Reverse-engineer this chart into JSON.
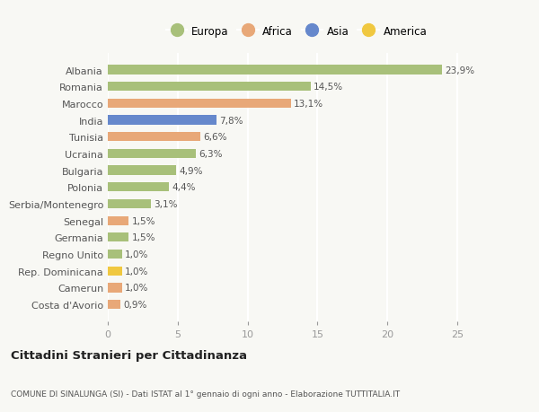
{
  "countries": [
    "Albania",
    "Romania",
    "Marocco",
    "India",
    "Tunisia",
    "Ucraina",
    "Bulgaria",
    "Polonia",
    "Serbia/Montenegro",
    "Senegal",
    "Germania",
    "Regno Unito",
    "Rep. Dominicana",
    "Camerun",
    "Costa d'Avorio"
  ],
  "values": [
    23.9,
    14.5,
    13.1,
    7.8,
    6.6,
    6.3,
    4.9,
    4.4,
    3.1,
    1.5,
    1.5,
    1.0,
    1.0,
    1.0,
    0.9
  ],
  "labels": [
    "23,9%",
    "14,5%",
    "13,1%",
    "7,8%",
    "6,6%",
    "6,3%",
    "4,9%",
    "4,4%",
    "3,1%",
    "1,5%",
    "1,5%",
    "1,0%",
    "1,0%",
    "1,0%",
    "0,9%"
  ],
  "continent": [
    "Europa",
    "Europa",
    "Africa",
    "Asia",
    "Africa",
    "Europa",
    "Europa",
    "Europa",
    "Europa",
    "Africa",
    "Europa",
    "Europa",
    "America",
    "Africa",
    "Africa"
  ],
  "colors": {
    "Europa": "#a8c07a",
    "Africa": "#e8a878",
    "Asia": "#6688cc",
    "America": "#f0c840"
  },
  "legend_order": [
    "Europa",
    "Africa",
    "Asia",
    "America"
  ],
  "bg_color": "#f8f8f4",
  "title": "Cittadini Stranieri per Cittadinanza",
  "subtitle": "COMUNE DI SINALUNGA (SI) - Dati ISTAT al 1° gennaio di ogni anno - Elaborazione TUTTITALIA.IT",
  "xlim": [
    0,
    27
  ],
  "xticks": [
    0,
    5,
    10,
    15,
    20,
    25
  ],
  "bar_height": 0.55
}
